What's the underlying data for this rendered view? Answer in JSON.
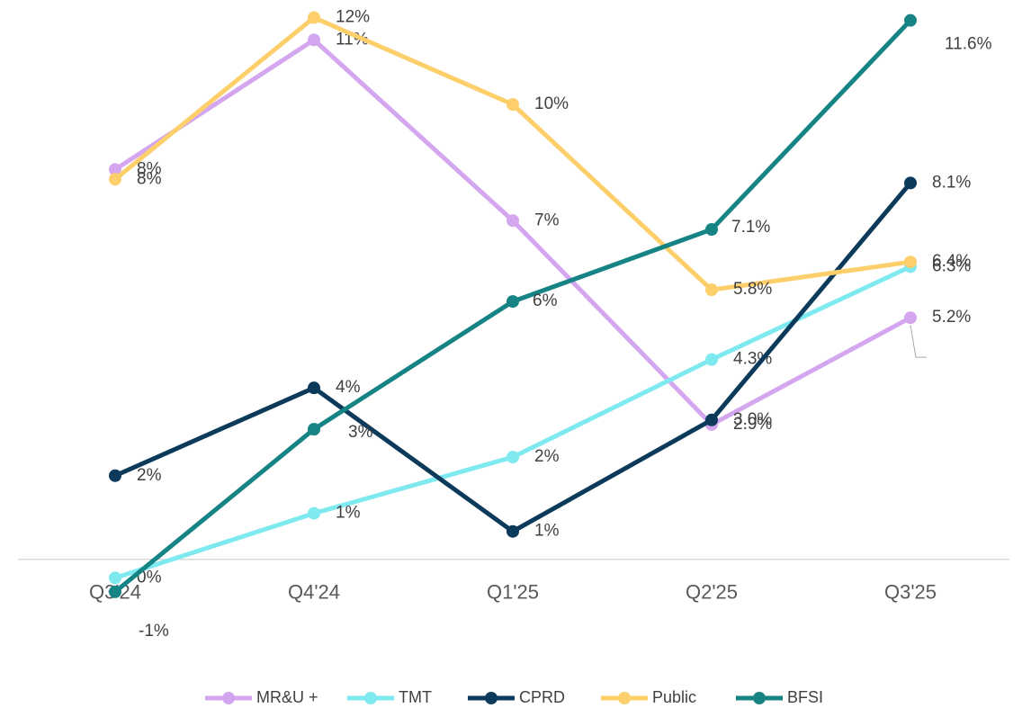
{
  "chart_data": {
    "type": "line",
    "categories": [
      "Q3'24",
      "Q4'24",
      "Q1'25",
      "Q2'25",
      "Q3'25"
    ],
    "ylim": [
      -2,
      12
    ],
    "series": [
      {
        "name": "MR&U +",
        "color": "#d5a6f0",
        "values": [
          8.39,
          11.18,
          7.29,
          2.9,
          5.2
        ],
        "value_labels": [
          "8%",
          "11%",
          "7%",
          "2.9%",
          "5.2%"
        ]
      },
      {
        "name": "TMT",
        "color": "#7eeaf0",
        "values": [
          -0.4,
          0.99,
          2.2,
          4.3,
          6.3
        ],
        "value_labels": [
          "0%",
          "1%",
          "2%",
          "4.3%",
          "6.3%"
        ]
      },
      {
        "name": "CPRD",
        "color": "#0b3a5a",
        "values": [
          1.8,
          3.69,
          0.6,
          3.0,
          8.1
        ],
        "value_labels": [
          "2%",
          "4%",
          "1%",
          "3.0%",
          "8.1%"
        ]
      },
      {
        "name": "Public",
        "color": "#fdcf6b",
        "values": [
          8.18,
          11.66,
          9.79,
          5.8,
          6.4
        ],
        "value_labels": [
          "8%",
          "12%",
          "10%",
          "5.8%",
          "6.4%"
        ]
      },
      {
        "name": "BFSI",
        "color": "#168484",
        "values": [
          -0.7,
          2.8,
          5.55,
          7.1,
          11.6
        ],
        "value_labels": [
          "-1%",
          "3%",
          "6%",
          "7.1%",
          "11.6%"
        ]
      }
    ],
    "legend": "bottom"
  }
}
